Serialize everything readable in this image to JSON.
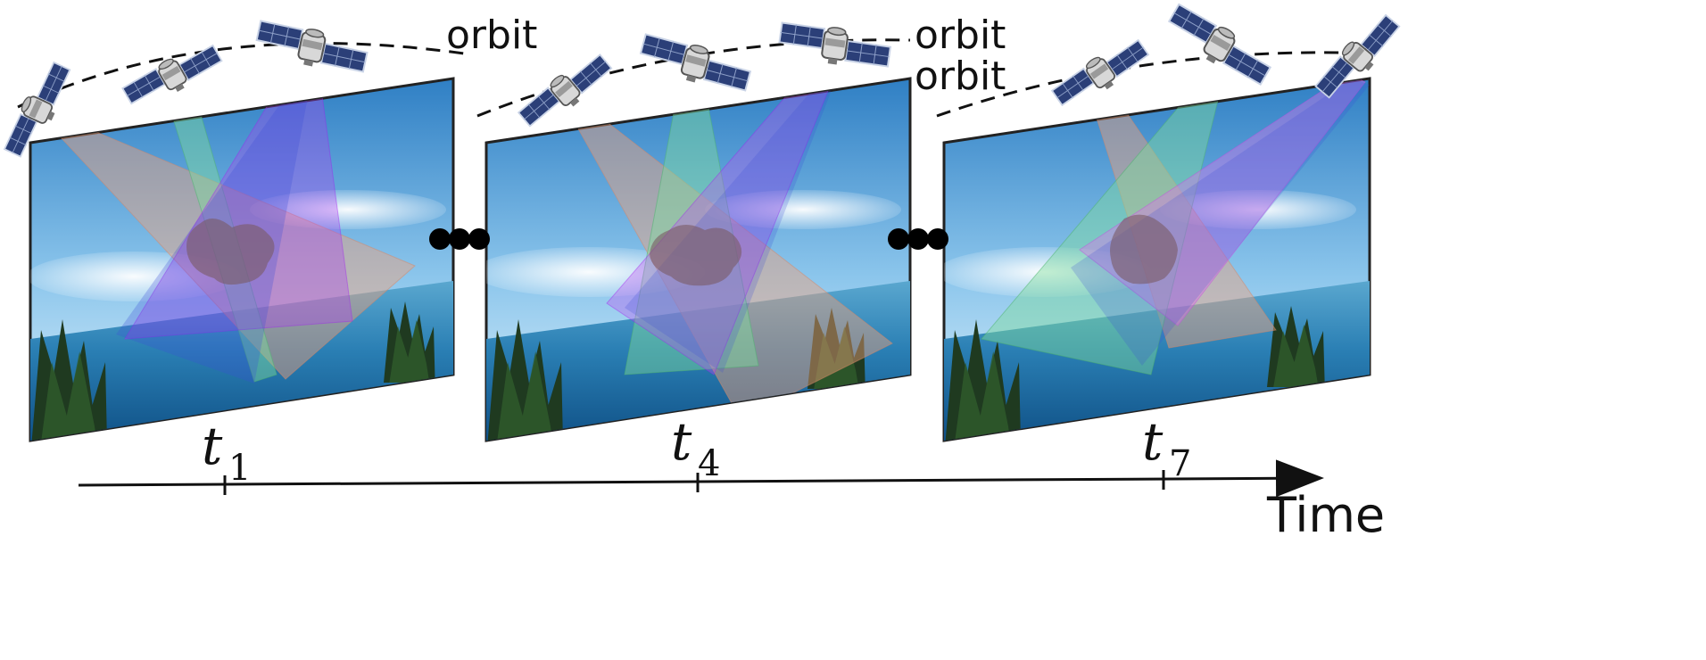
{
  "orbit_labels": [
    "orbit",
    "orbit",
    "orbit"
  ],
  "time_label": "Time",
  "timestamps": [
    {
      "main": "t",
      "sub": "1"
    },
    {
      "main": "t",
      "sub": "4"
    },
    {
      "main": "t",
      "sub": "7"
    }
  ],
  "colors": {
    "sky_top": "#3a86c8",
    "sky_bottom": "#bfe0f5",
    "sea_top": "#4a98c4",
    "sea_bottom": "#0d4f86",
    "beam_orange": "#f2a27a",
    "beam_green": "#7fdc9c",
    "beam_purple": "#a020f0",
    "beam_blue": "#3d6fe0",
    "beam_magenta": "#e070ee",
    "cloud": "#7a5a64"
  },
  "icons": [
    "satellite-icon",
    "tree-icon",
    "ellipsis-icon",
    "arrow-icon"
  ]
}
